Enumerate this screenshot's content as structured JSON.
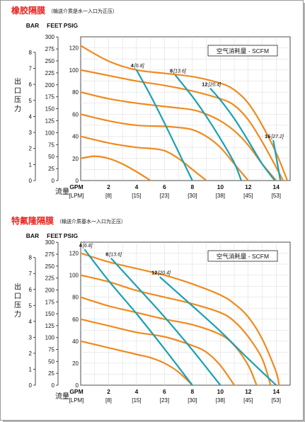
{
  "chart_data": [
    {
      "type": "line",
      "title": "橡胶隔膜",
      "subtitle": "（输送介质是水一入口为正压）",
      "ylabel": "出 口 压 力",
      "xlabel": "流量",
      "legend_title": "空气消耗量 - SCFM",
      "unit_headers": [
        "BAR",
        "FEET",
        "PSIG"
      ],
      "gpm_label": "GPM",
      "lpm_label": "[LPM]",
      "xlim": [
        0,
        15
      ],
      "ylim": [
        0,
        130
      ],
      "x_ticks": [
        {
          "gpm": 2,
          "label": "2",
          "lpm": "[8]"
        },
        {
          "gpm": 4,
          "label": "4",
          "lpm": "[15]"
        },
        {
          "gpm": 6,
          "label": "6",
          "lpm": "[23]"
        },
        {
          "gpm": 8,
          "label": "8",
          "lpm": "[30]"
        },
        {
          "gpm": 10,
          "label": "10",
          "lpm": "[38]"
        },
        {
          "gpm": 12,
          "label": "12",
          "lpm": "[45]"
        },
        {
          "gpm": 14,
          "label": "14",
          "lpm": "[53]"
        }
      ],
      "psig_ticks": [
        0,
        20,
        40,
        60,
        80,
        100,
        120
      ],
      "feet_ticks": [
        0,
        25,
        50,
        75,
        100,
        125,
        150,
        175,
        200,
        225,
        250,
        275,
        300
      ],
      "bar_ticks": [
        0,
        1,
        2,
        3,
        4,
        5,
        6,
        7,
        8
      ],
      "pressure_series": [
        {
          "x": [
            0,
            1,
            2,
            3,
            4,
            5
          ],
          "y": [
            20,
            22,
            20,
            15,
            8,
            0
          ]
        },
        {
          "x": [
            0,
            2,
            4,
            5,
            6,
            7,
            8,
            9
          ],
          "y": [
            40,
            34,
            30,
            29,
            27,
            20,
            10,
            0
          ]
        },
        {
          "x": [
            0,
            2,
            4,
            6,
            7,
            8,
            9,
            10,
            11,
            12
          ],
          "y": [
            60,
            54,
            50,
            49,
            48,
            46,
            40,
            30,
            15,
            0
          ]
        },
        {
          "x": [
            0,
            2,
            4,
            6,
            8,
            9,
            10,
            11,
            12,
            13,
            14
          ],
          "y": [
            80,
            74,
            70,
            67,
            64,
            60,
            54,
            45,
            32,
            15,
            0
          ]
        },
        {
          "x": [
            0,
            2,
            4,
            6,
            8,
            10,
            11,
            12,
            13,
            14,
            14.5
          ],
          "y": [
            100,
            95,
            90,
            86,
            81,
            74,
            68,
            55,
            35,
            12,
            0
          ]
        },
        {
          "x": [
            0,
            2,
            4,
            6,
            8,
            10,
            11,
            12,
            13,
            14,
            14.8
          ],
          "y": [
            122,
            108,
            100,
            97,
            94,
            88,
            82,
            70,
            50,
            25,
            0
          ]
        }
      ],
      "scfm_series": [
        {
          "label": "4",
          "sub": "[6.8]",
          "x": [
            4,
            5,
            6,
            7,
            8
          ],
          "y": [
            100,
            77,
            52,
            26,
            0
          ]
        },
        {
          "label": "8",
          "sub": "[13.6]",
          "x": [
            6.8,
            8,
            9,
            10,
            11,
            11.5
          ],
          "y": [
            95,
            76,
            58,
            38,
            16,
            0
          ]
        },
        {
          "label": "12",
          "sub": "[20.4]",
          "x": [
            9.3,
            10,
            11,
            12,
            13,
            13.9
          ],
          "y": [
            83,
            73,
            56,
            36,
            15,
            0
          ]
        },
        {
          "label": "16",
          "sub": "[27.2]",
          "x": [
            13.8,
            14.3
          ],
          "y": [
            36,
            0
          ]
        }
      ]
    },
    {
      "type": "line",
      "title": "特氟隆隔膜",
      "subtitle": "（输送介质基水一入口为正压）",
      "ylabel": "出 口 压 力",
      "xlabel": "流量",
      "legend_title": "空气消耗量 - SCFM",
      "unit_headers": [
        "BAR",
        "FEET",
        "PSIG"
      ],
      "gpm_label": "GPM",
      "lpm_label": "[LPM]",
      "xlim": [
        0,
        15
      ],
      "ylim": [
        0,
        130
      ],
      "x_ticks": [
        {
          "gpm": 2,
          "label": "2",
          "lpm": "[8]"
        },
        {
          "gpm": 4,
          "label": "4",
          "lpm": "[15]"
        },
        {
          "gpm": 6,
          "label": "6",
          "lpm": "[23]"
        },
        {
          "gpm": 8,
          "label": "8",
          "lpm": "[30]"
        },
        {
          "gpm": 10,
          "label": "10",
          "lpm": "[38]"
        },
        {
          "gpm": 12,
          "label": "12",
          "lpm": "[45]"
        },
        {
          "gpm": 14,
          "label": "14",
          "lpm": "[53]"
        }
      ],
      "psig_ticks": [
        0,
        20,
        40,
        60,
        80,
        100,
        120
      ],
      "feet_ticks": [
        0,
        25,
        50,
        75,
        100,
        125,
        150,
        175,
        200,
        225,
        250,
        275,
        300
      ],
      "bar_ticks": [
        0,
        1,
        2,
        3,
        4,
        5,
        6,
        7,
        8
      ],
      "pressure_series": [
        {
          "x": [
            0,
            2,
            4,
            5,
            6,
            7,
            8
          ],
          "y": [
            40,
            34,
            28,
            25,
            20,
            12,
            0
          ]
        },
        {
          "x": [
            0,
            2,
            4,
            6,
            8,
            9,
            10,
            11
          ],
          "y": [
            60,
            54,
            48,
            44,
            36,
            30,
            18,
            0
          ]
        },
        {
          "x": [
            0,
            2,
            4,
            6,
            8,
            10,
            11,
            12,
            12.6
          ],
          "y": [
            80,
            72,
            66,
            60,
            55,
            46,
            36,
            18,
            0
          ]
        },
        {
          "x": [
            0,
            2,
            4,
            6,
            8,
            10,
            11,
            12,
            13,
            13.6
          ],
          "y": [
            100,
            94,
            86,
            80,
            74,
            66,
            58,
            44,
            24,
            0
          ]
        },
        {
          "x": [
            0,
            2,
            4,
            6,
            8,
            10,
            11,
            12,
            13,
            14,
            14.2
          ],
          "y": [
            120,
            112,
            106,
            100,
            92,
            82,
            74,
            62,
            42,
            12,
            0
          ]
        }
      ],
      "scfm_series": [
        {
          "label": "4",
          "sub": "[6.8]",
          "x": [
            0.3,
            2,
            4,
            6,
            8
          ],
          "y": [
            123,
            95,
            65,
            33,
            0
          ]
        },
        {
          "label": "8",
          "sub": "[13.6]",
          "x": [
            2.2,
            4,
            6,
            8,
            10
          ],
          "y": [
            115,
            90,
            62,
            32,
            0
          ]
        },
        {
          "label": "12",
          "sub": "[20.4]",
          "x": [
            5.7,
            8,
            10,
            12,
            14
          ],
          "y": [
            98,
            72,
            49,
            24,
            0
          ]
        }
      ]
    }
  ]
}
